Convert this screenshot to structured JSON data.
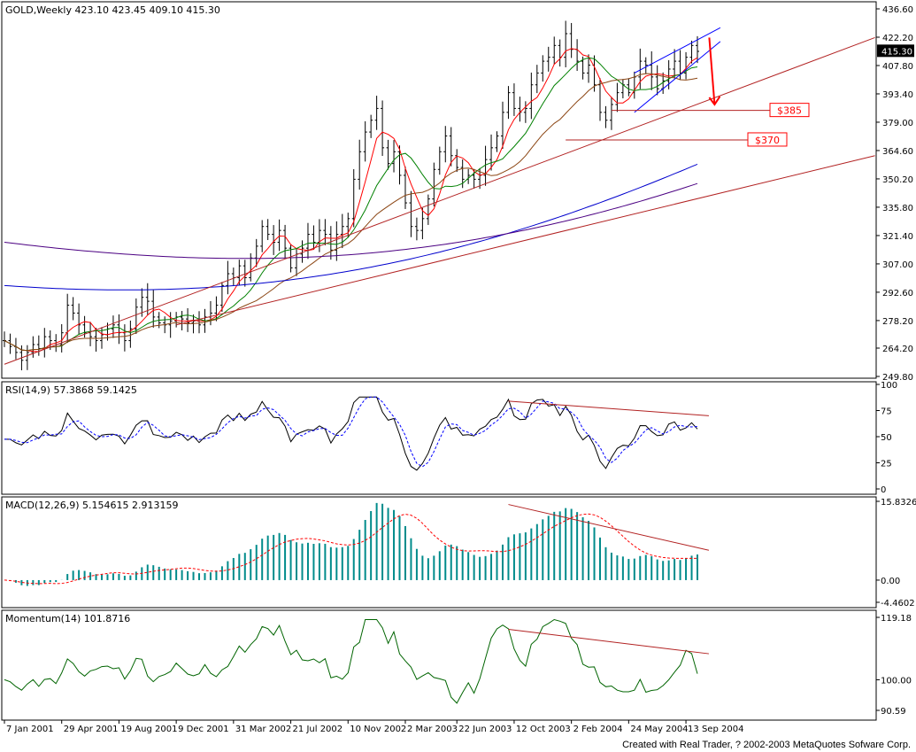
{
  "chart_data": [
    {
      "type": "ohlc",
      "title": "GOLD,Weekly  423.10 423.45 409.10 415.30",
      "symbol": "GOLD",
      "timeframe": "Weekly",
      "ohlc_last": {
        "open": 423.1,
        "high": 423.45,
        "low": 409.1,
        "close": 415.3
      },
      "current_price_label": "415.30",
      "ylim": [
        249.8,
        436.6
      ],
      "y_ticks": [
        "436.60",
        "422.20",
        "407.80",
        "393.40",
        "379.00",
        "364.60",
        "350.20",
        "335.80",
        "321.40",
        "307.00",
        "292.60",
        "278.20",
        "264.20",
        "249.80"
      ],
      "x_tick_labels": [
        "7 Jan 2001",
        "29 Apr 2001",
        "19 Aug 2001",
        "9 Dec 2001",
        "31 Mar 2002",
        "21 Jul 2002",
        "10 Nov 2002",
        "2 Mar 2003",
        "22 Jun 2003",
        "12 Oct 2003",
        "2 Feb 2004",
        "24 May 2004",
        "13 Sep 2004"
      ],
      "weekly_close_approx": [
        268,
        265,
        262,
        258,
        262,
        266,
        264,
        270,
        268,
        266,
        272,
        286,
        282,
        276,
        272,
        270,
        268,
        271,
        274,
        276,
        272,
        268,
        274,
        285,
        290,
        288,
        280,
        277,
        276,
        278,
        280,
        279,
        277,
        278,
        276,
        280,
        282,
        286,
        296,
        302,
        300,
        306,
        300,
        310,
        316,
        326,
        322,
        318,
        324,
        315,
        305,
        312,
        315,
        322,
        318,
        324,
        322,
        314,
        322,
        326,
        330,
        350,
        364,
        374,
        380,
        386,
        366,
        358,
        364,
        352,
        338,
        326,
        324,
        330,
        340,
        355,
        364,
        372,
        362,
        356,
        350,
        352,
        350,
        352,
        360,
        366,
        372,
        384,
        394,
        386,
        384,
        386,
        398,
        404,
        410,
        412,
        418,
        412,
        424,
        416,
        410,
        404,
        408,
        398,
        384,
        380,
        388,
        394,
        398,
        394,
        402,
        410,
        408,
        402,
        396,
        400,
        406,
        410,
        404,
        412,
        418,
        415
      ],
      "annotations": [
        {
          "text": "$385",
          "price": 385
        },
        {
          "text": "$370",
          "price": 370
        }
      ]
    },
    {
      "type": "line",
      "title": "RSI(14,9)  57.3868  59.1425",
      "name": "RSI(14,9)",
      "values_last": [
        57.3868,
        59.1425
      ],
      "ylim": [
        0,
        100
      ],
      "y_ticks": [
        "100",
        "75",
        "50",
        "25",
        "0"
      ]
    },
    {
      "type": "bar",
      "title": "MACD(12,26,9)  5.154615  2.913159",
      "name": "MACD(12,26,9)",
      "values_last": [
        5.154615,
        2.913159
      ],
      "ylim": [
        -4.4602,
        15.8326
      ],
      "y_ticks": [
        "15.8326",
        "0.00",
        "-4.4602"
      ]
    },
    {
      "type": "line",
      "title": "Momentum(14)  101.8716",
      "name": "Momentum(14)",
      "values_last": [
        101.8716
      ],
      "ylim": [
        90.59,
        119.18
      ],
      "y_ticks": [
        "119.18",
        "100.00",
        "90.59"
      ]
    }
  ],
  "colors": {
    "bar": "#000000",
    "ma_fast": "#ff0000",
    "ma_mid": "#008000",
    "ma_slow": "#8b4513",
    "ma_long_blue": "#0000cd",
    "ma_long_purple": "#4b0082",
    "trend": "#b22222",
    "signal_arrow": "#ff0000",
    "macd_hist": "#008b8b",
    "momentum": "#006400",
    "price_marker_bg": "#000000"
  },
  "footer": "Created with Real Trader, ? 2002-2003 MetaQuotes Sofware Corp."
}
